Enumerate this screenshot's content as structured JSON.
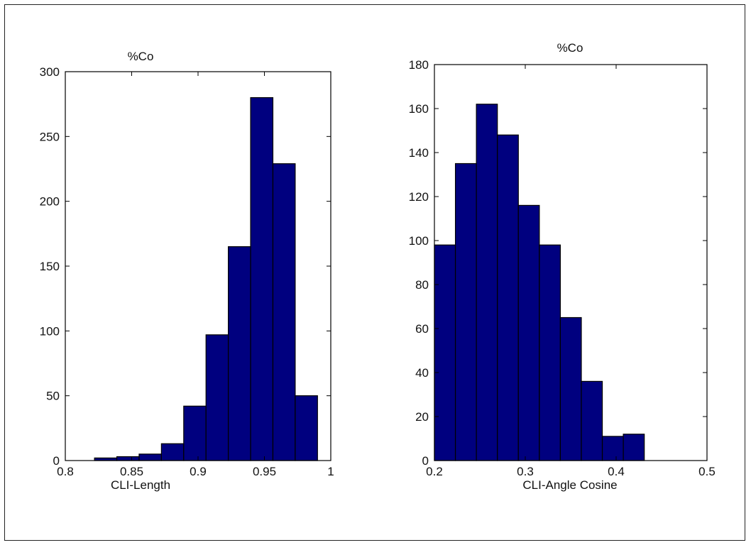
{
  "colors": {
    "bar_fill": "#00007F",
    "bar_stroke": "#000000",
    "axis": "#000000",
    "background": "#FFFFFF"
  },
  "chart_data": [
    {
      "type": "bar",
      "title": "%Co",
      "xlabel": "CLI-Length",
      "ylabel": "",
      "xlim": [
        0.8,
        1
      ],
      "ylim": [
        0,
        300
      ],
      "xticks": [
        "0.8",
        "0.85",
        "0.9",
        "0.95",
        "1"
      ],
      "xtick_values": [
        0.8,
        0.85,
        0.9,
        0.95,
        1.0
      ],
      "yticks": [
        "0",
        "50",
        "100",
        "150",
        "200",
        "250",
        "300"
      ],
      "ytick_values": [
        0,
        50,
        100,
        150,
        200,
        250,
        300
      ],
      "bin_edges": [
        0.822,
        0.8388,
        0.8556,
        0.8724,
        0.8892,
        0.906,
        0.9228,
        0.9396,
        0.9564,
        0.9732,
        0.99
      ],
      "values": [
        2,
        3,
        5,
        13,
        42,
        97,
        165,
        280,
        229,
        50
      ],
      "grid": false
    },
    {
      "type": "bar",
      "title": "%Co",
      "xlabel": "CLI-Angle Cosine",
      "ylabel": "",
      "xlim": [
        0.2,
        0.5
      ],
      "ylim": [
        0,
        180
      ],
      "xticks": [
        "0.2",
        "0.3",
        "0.4",
        "0.5"
      ],
      "xtick_values": [
        0.2,
        0.3,
        0.4,
        0.5
      ],
      "yticks": [
        "0",
        "20",
        "40",
        "60",
        "80",
        "100",
        "120",
        "140",
        "160",
        "180"
      ],
      "ytick_values": [
        0,
        20,
        40,
        60,
        80,
        100,
        120,
        140,
        160,
        180
      ],
      "bin_edges": [
        0.2,
        0.2231,
        0.2462,
        0.2693,
        0.2924,
        0.3155,
        0.3386,
        0.3617,
        0.3848,
        0.4079,
        0.431
      ],
      "values": [
        98,
        135,
        162,
        148,
        116,
        98,
        65,
        36,
        11,
        12
      ],
      "grid": false
    }
  ]
}
